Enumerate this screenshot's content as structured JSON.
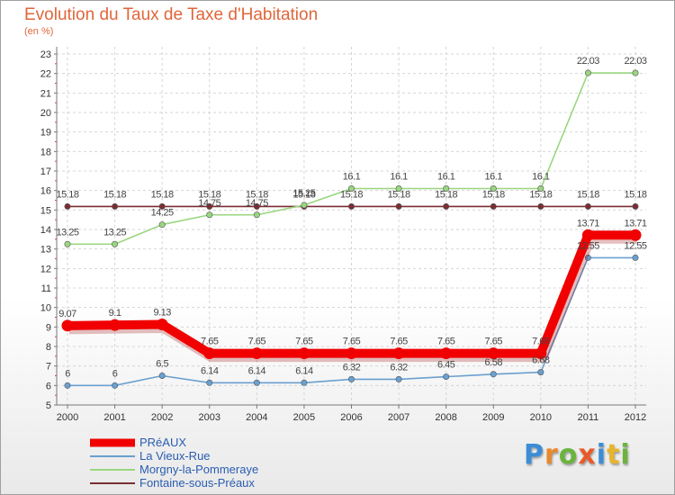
{
  "title": "Evolution du Taux de Taxe d'Habitation",
  "subtitle": "(en %)",
  "logo": {
    "text": "Proxiti",
    "letters": [
      "P",
      "r",
      "o",
      "x",
      "i",
      "t",
      "i"
    ],
    "colors": [
      "#3a8dd6",
      "#e8892c",
      "#6ab43c",
      "#e85a2a",
      "#3a8dd6",
      "#e8b42c",
      "#6ab43c"
    ]
  },
  "chart_data": {
    "type": "line",
    "title": "Evolution du Taux de Taxe d'Habitation",
    "ylabel": "(en %)",
    "xlabel": "",
    "x": [
      "2000",
      "2001",
      "2002",
      "2003",
      "2004",
      "2005",
      "2006",
      "2007",
      "2008",
      "2009",
      "2010",
      "2011",
      "2012"
    ],
    "ylim": [
      5,
      23
    ],
    "yticks": [
      5,
      6,
      7,
      8,
      9,
      10,
      11,
      12,
      13,
      14,
      15,
      16,
      17,
      18,
      19,
      20,
      21,
      22,
      23
    ],
    "grid": true,
    "legend_position": "bottom-left",
    "series": [
      {
        "name": "PRéAUX",
        "color": "#f00000",
        "values": [
          9.07,
          9.1,
          9.13,
          7.65,
          7.65,
          7.65,
          7.65,
          7.65,
          7.65,
          7.65,
          7.65,
          13.71,
          13.71
        ],
        "labels": [
          "9.07",
          "9.1",
          "9.13",
          "7.65",
          "7.65",
          "7.65",
          "7.65",
          "7.65",
          "7.65",
          "7.65",
          "7.65",
          "13.71",
          "13.71"
        ]
      },
      {
        "name": "La Vieux-Rue",
        "color": "#6aa0d0",
        "values": [
          6,
          6,
          6.5,
          6.14,
          6.14,
          6.14,
          6.32,
          6.32,
          6.45,
          6.58,
          6.68,
          12.55,
          12.55
        ],
        "labels": [
          "6",
          "6",
          "6.5",
          "6.14",
          "6.14",
          "6.14",
          "6.32",
          "6.32",
          "6.45",
          "6.58",
          "6.68",
          "12.55",
          "12.55"
        ]
      },
      {
        "name": "Morgny-la-Pommeraye",
        "color": "#9ad680",
        "values": [
          13.25,
          13.25,
          14.25,
          14.75,
          14.75,
          15.25,
          16.1,
          16.1,
          16.1,
          16.1,
          16.1,
          22.03,
          22.03
        ],
        "labels": [
          "13.25",
          "13.25",
          "14.25",
          "14.75",
          "14.75",
          "15.25",
          "16.1",
          "16.1",
          "16.1",
          "16.1",
          "16.1",
          "22.03",
          "22.03"
        ]
      },
      {
        "name": "Fontaine-sous-Préaux",
        "color": "#7a2e34",
        "values": [
          15.18,
          15.18,
          15.18,
          15.18,
          15.18,
          15.18,
          15.18,
          15.18,
          15.18,
          15.18,
          15.18,
          15.18,
          15.18
        ],
        "labels": [
          "15.18",
          "15.18",
          "15.18",
          "15.18",
          "15.18",
          "15.18",
          "15.18",
          "15.18",
          "15.18",
          "15.18",
          "15.18",
          "15.18",
          "15.18"
        ]
      }
    ]
  }
}
